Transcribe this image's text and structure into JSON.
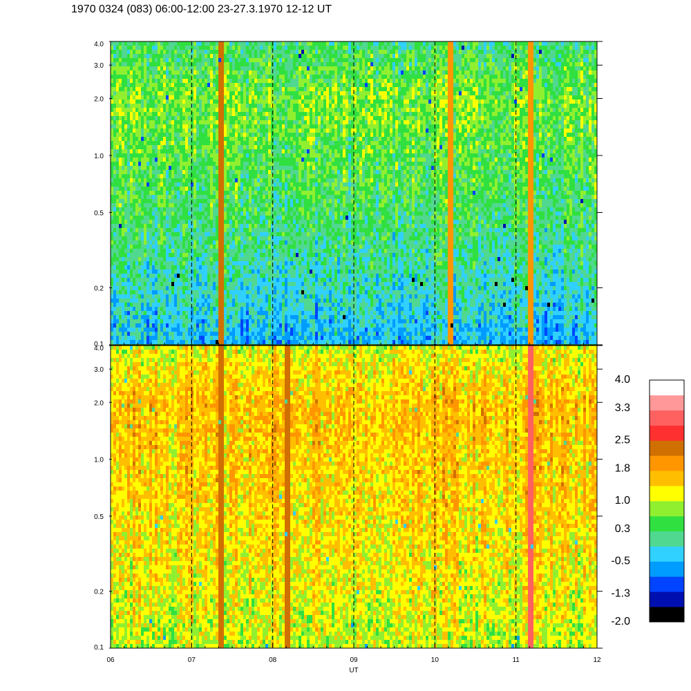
{
  "title": "1970 0324 (083) 06:00-12:00 23-27.3.1970  12-12 UT",
  "chart_data": [
    {
      "type": "heatmap",
      "panel": "upper",
      "x_ticks": [
        "06",
        "07",
        "08",
        "09",
        "10",
        "11",
        "12"
      ],
      "x_dashed_lines": [
        "07",
        "08",
        "09",
        "10",
        "11"
      ],
      "y_scale": "log",
      "y_ticks": [
        "4.0",
        "3.0",
        "2.0",
        "1.0",
        "0.5",
        "0.2",
        "0.1"
      ],
      "ylim": [
        0.1,
        4.0
      ],
      "dominant_level_by_frequency": [
        {
          "y": 0.1,
          "level": -0.5
        },
        {
          "y": 0.2,
          "level": -0.1
        },
        {
          "y": 0.5,
          "level": 0.3
        },
        {
          "y": 1.0,
          "level": 0.5
        },
        {
          "y": 2.0,
          "level": 0.7
        },
        {
          "y": 4.0,
          "level": 0.2
        }
      ],
      "features": [
        {
          "x": "07:20",
          "level": 2.2
        },
        {
          "x": "10:10",
          "level": 1.8
        },
        {
          "x": "11:10",
          "level": 1.8
        }
      ]
    },
    {
      "type": "heatmap",
      "panel": "lower",
      "x_ticks": [
        "06",
        "07",
        "08",
        "09",
        "10",
        "11",
        "12"
      ],
      "x_dashed_lines": [
        "07",
        "08",
        "09",
        "10",
        "11"
      ],
      "xlabel": "UT",
      "y_scale": "log",
      "y_ticks": [
        "4.0",
        "3.0",
        "2.0",
        "1.0",
        "0.5",
        "0.2",
        "0.1"
      ],
      "ylim": [
        0.1,
        4.0
      ],
      "dominant_level_by_frequency": [
        {
          "y": 0.1,
          "level": 1.0
        },
        {
          "y": 0.2,
          "level": 1.2
        },
        {
          "y": 0.5,
          "level": 1.4
        },
        {
          "y": 1.0,
          "level": 1.5
        },
        {
          "y": 2.0,
          "level": 1.6
        },
        {
          "y": 4.0,
          "level": 1.1
        }
      ],
      "features": [
        {
          "x": "11:10",
          "level": 3.0
        },
        {
          "x": "07:20",
          "level": 2.2
        },
        {
          "x": "08:10",
          "level": 2.2
        }
      ]
    }
  ],
  "colorbar": {
    "labels": [
      "4.0",
      "3.3",
      "2.5",
      "1.8",
      "1.0",
      "0.3",
      "-0.5",
      "-1.3",
      "-2.0"
    ],
    "colors": [
      "#000000",
      "#0010b0",
      "#0044ff",
      "#009cff",
      "#30d0ff",
      "#50d890",
      "#30e040",
      "#90f030",
      "#ffff00",
      "#ffbf00",
      "#ff9600",
      "#d07000",
      "#ff3030",
      "#ff6060",
      "#ff9898",
      "#ffffff"
    ]
  }
}
